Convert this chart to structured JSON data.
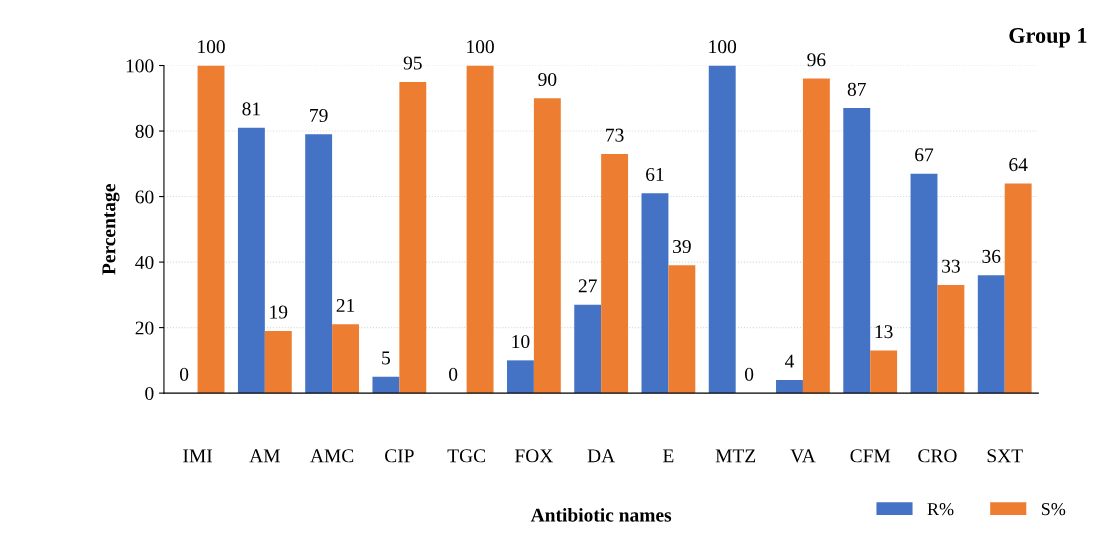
{
  "chart_data": {
    "type": "bar",
    "title": "Group 1",
    "xlabel": "Antibiotic names",
    "ylabel": "Percentage",
    "categories": [
      "IMI",
      "AM",
      "AMC",
      "CIP",
      "TGC",
      "FOX",
      "DA",
      "E",
      "MTZ",
      "VA",
      "CFM",
      "CRO",
      "SXT"
    ],
    "series": [
      {
        "name": "R%",
        "color": "#4472c4",
        "values": [
          0,
          81,
          79,
          5,
          0,
          10,
          27,
          61,
          100,
          4,
          87,
          67,
          36
        ]
      },
      {
        "name": "S%",
        "color": "#ed7d31",
        "values": [
          100,
          19,
          21,
          95,
          100,
          90,
          73,
          39,
          0,
          96,
          13,
          33,
          64
        ]
      }
    ],
    "ylim": [
      0,
      100
    ],
    "yticks": [
      0,
      20,
      40,
      60,
      80,
      100
    ],
    "grid": "y",
    "legend": "bottom right",
    "data_labels": true
  }
}
